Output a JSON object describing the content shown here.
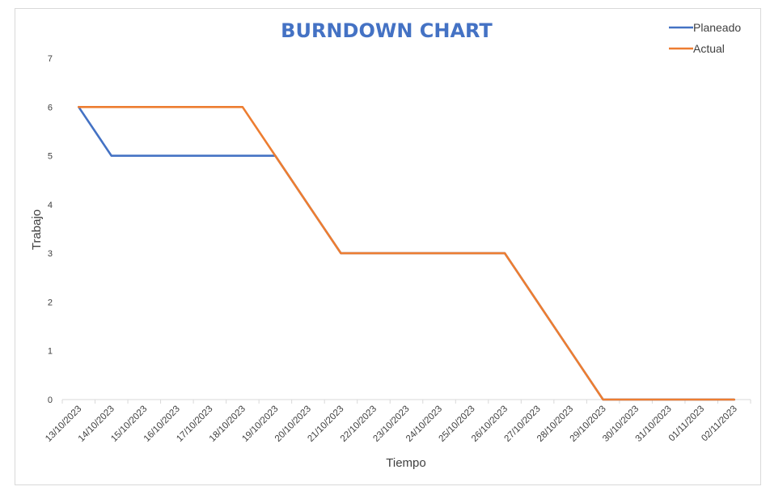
{
  "chart_data": {
    "type": "line",
    "title": "BURNDOWN CHART",
    "xlabel": "Tiempo",
    "ylabel": "Trabajo",
    "ylim": [
      0,
      7
    ],
    "yticks": [
      "0",
      "1",
      "2",
      "3",
      "4",
      "5",
      "6",
      "7"
    ],
    "grid": false,
    "legend_position": "top-right",
    "categories": [
      "13/10/2023",
      "14/10/2023",
      "15/10/2023",
      "16/10/2023",
      "17/10/2023",
      "18/10/2023",
      "19/10/2023",
      "20/10/2023",
      "21/10/2023",
      "22/10/2023",
      "23/10/2023",
      "24/10/2023",
      "25/10/2023",
      "26/10/2023",
      "27/10/2023",
      "28/10/2023",
      "29/10/2023",
      "30/10/2023",
      "31/10/2023",
      "01/11/2023",
      "02/11/2023"
    ],
    "series": [
      {
        "name": "Planeado",
        "color": "#4472c4",
        "values": [
          6,
          5,
          5,
          5,
          5,
          5,
          5,
          4,
          3,
          3,
          3,
          3,
          3,
          3,
          2,
          1,
          0,
          0,
          0,
          0,
          0
        ]
      },
      {
        "name": "Actual",
        "color": "#ed7d31",
        "values": [
          6,
          6,
          6,
          6,
          6,
          6,
          5,
          4,
          3,
          3,
          3,
          3,
          3,
          3,
          2,
          1,
          0,
          0,
          0,
          0,
          0
        ]
      }
    ]
  }
}
